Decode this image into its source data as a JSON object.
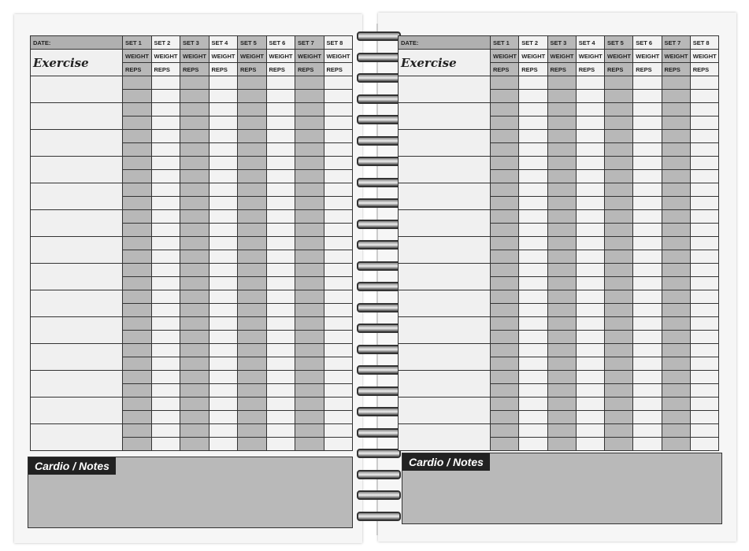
{
  "pages": [
    {
      "date_label": "DATE:",
      "title": "Exercise",
      "sets": [
        "SET 1",
        "SET 2",
        "SET 3",
        "SET 4",
        "SET 5",
        "SET 6",
        "SET 7",
        "SET 8"
      ],
      "weight_label": "WEIGHT",
      "reps_label": "REPS",
      "exercise_rows": 14,
      "cardio_label": "Cardio / Notes"
    },
    {
      "date_label": "DATE:",
      "title": "Exercise",
      "sets": [
        "SET 1",
        "SET 2",
        "SET 3",
        "SET 4",
        "SET 5",
        "SET 6",
        "SET 7",
        "SET 8"
      ],
      "weight_label": "WEIGHT",
      "reps_label": "REPS",
      "exercise_rows": 14,
      "cardio_label": "Cardio / Notes"
    }
  ],
  "colors": {
    "shaded_column": "#b8b8b8",
    "cardio_box": "#b9b9b9",
    "label_bg": "#222222"
  }
}
